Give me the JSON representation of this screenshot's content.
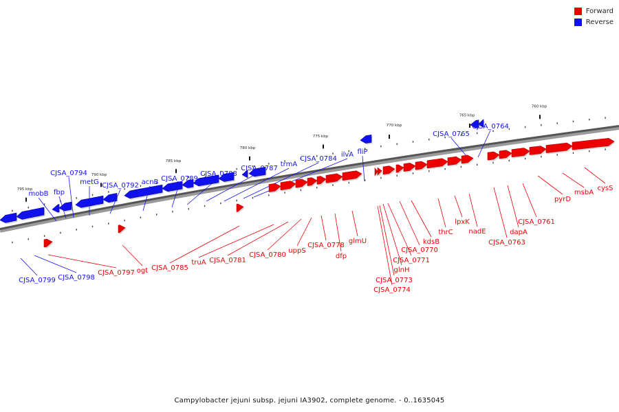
{
  "legend": {
    "forward": {
      "label": "Forward",
      "color": "#ee0000"
    },
    "reverse": {
      "label": "Reverse",
      "color": "#1111ee"
    }
  },
  "caption": "Campylobacter jejuni subsp. jejuni IA3902, complete genome. - 0..1635045",
  "ticks": [
    "760 kbp",
    "765 kbp",
    "770 kbp",
    "775 kbp",
    "780 kbp",
    "785 kbp",
    "790 kbp",
    "795 kbp"
  ],
  "genes": [
    {
      "name": "CJSA_0799",
      "strand": "reverse"
    },
    {
      "name": "CJSA_0798",
      "strand": "reverse"
    },
    {
      "name": "CJSA_0797",
      "strand": "forward"
    },
    {
      "name": "mobB",
      "strand": "reverse"
    },
    {
      "name": "fbp",
      "strand": "reverse"
    },
    {
      "name": "CJSA_0794",
      "strand": "reverse"
    },
    {
      "name": "metG",
      "strand": "reverse"
    },
    {
      "name": "CJSA_0792",
      "strand": "reverse"
    },
    {
      "name": "ogt",
      "strand": "forward"
    },
    {
      "name": "acnB",
      "strand": "reverse"
    },
    {
      "name": "CJSA_0789",
      "strand": "reverse"
    },
    {
      "name": "CJSA_0788",
      "strand": "reverse"
    },
    {
      "name": "CJSA_0787",
      "strand": "reverse"
    },
    {
      "name": "CJSA_0785",
      "strand": "forward"
    },
    {
      "name": "trmA",
      "strand": "reverse"
    },
    {
      "name": "truA",
      "strand": "forward"
    },
    {
      "name": "CJSA_0784",
      "strand": "reverse"
    },
    {
      "name": "CJSA_0781",
      "strand": "forward"
    },
    {
      "name": "ilvA",
      "strand": "reverse"
    },
    {
      "name": "CJSA_0780",
      "strand": "forward"
    },
    {
      "name": "fliP",
      "strand": "reverse"
    },
    {
      "name": "uppS",
      "strand": "forward"
    },
    {
      "name": "CJSA_0778",
      "strand": "forward"
    },
    {
      "name": "dfp",
      "strand": "forward"
    },
    {
      "name": "glmU",
      "strand": "forward"
    },
    {
      "name": "CJSA_0774",
      "strand": "forward"
    },
    {
      "name": "CJSA_0773",
      "strand": "forward"
    },
    {
      "name": "glnH",
      "strand": "forward"
    },
    {
      "name": "CJSA_0771",
      "strand": "forward"
    },
    {
      "name": "CJSA_0770",
      "strand": "forward"
    },
    {
      "name": "kdsB",
      "strand": "forward"
    },
    {
      "name": "thrC",
      "strand": "forward"
    },
    {
      "name": "lpxK",
      "strand": "forward"
    },
    {
      "name": "nadE",
      "strand": "forward"
    },
    {
      "name": "CJSA_0765",
      "strand": "reverse"
    },
    {
      "name": "CJSA_0764",
      "strand": "reverse"
    },
    {
      "name": "CJSA_0763",
      "strand": "forward"
    },
    {
      "name": "dapA",
      "strand": "forward"
    },
    {
      "name": "CJSA_0761",
      "strand": "forward"
    },
    {
      "name": "pyrD",
      "strand": "forward"
    },
    {
      "name": "msbA",
      "strand": "forward"
    },
    {
      "name": "cysS",
      "strand": "forward"
    }
  ]
}
